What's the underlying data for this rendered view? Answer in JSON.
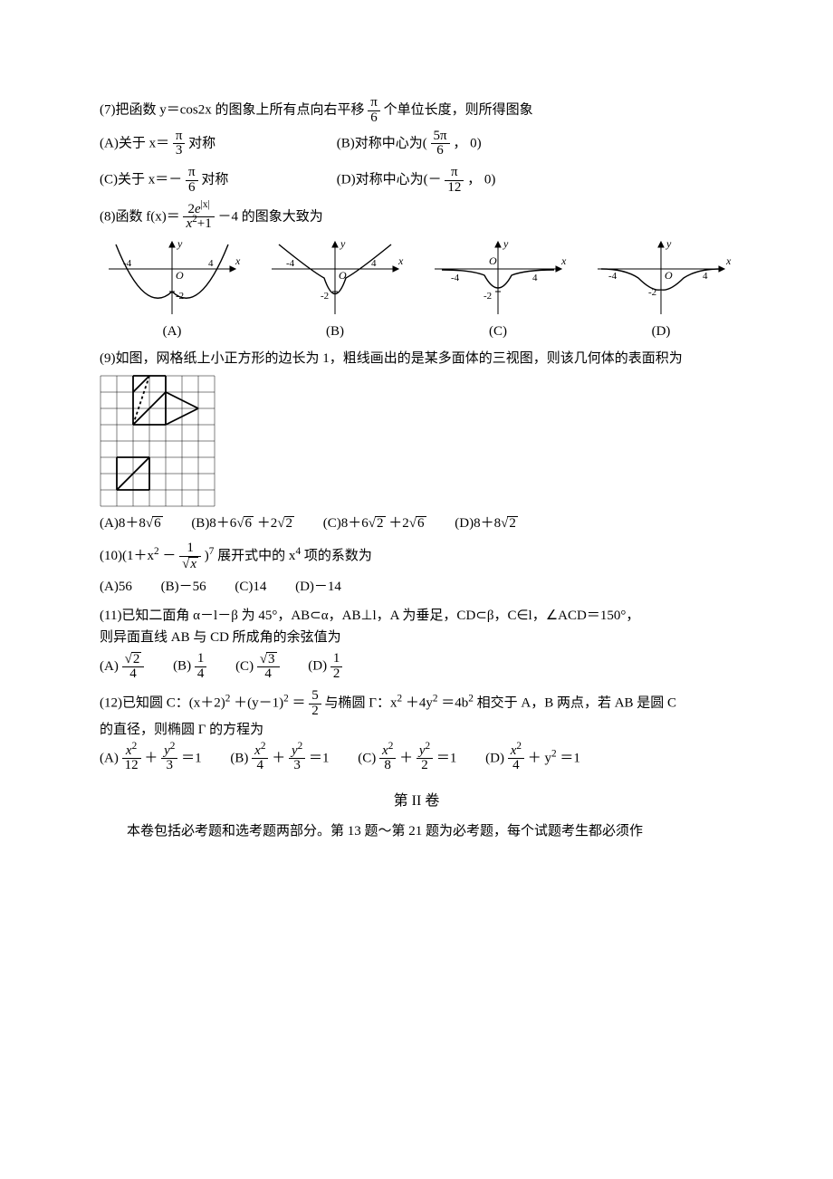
{
  "q7": {
    "stem_a": "(7)把函数 y＝cos2x 的图象上所有点向右平移",
    "stem_b": "个单位长度，则所得图象",
    "shift_num": "π",
    "shift_den": "6",
    "optA_a": "(A)关于 x＝",
    "optA_num": "π",
    "optA_den": "3",
    "optA_b": "对称",
    "optB_a": "(B)对称中心为(",
    "optB_num": "5π",
    "optB_den": "6",
    "optB_b": "， 0)",
    "optC_a": "(C)关于 x＝－",
    "optC_num": "π",
    "optC_den": "6",
    "optC_b": "对称",
    "optD_a": "(D)对称中心为(－",
    "optD_num": "π",
    "optD_den": "12",
    "optD_b": "， 0)"
  },
  "q8": {
    "stem_a": "(8)函数 f(x)＝",
    "num_prefix": "2",
    "num_e_base": "e",
    "num_e_sup": "|x|",
    "den_x": "x",
    "den_sup": "2",
    "den_plus": "+1",
    "stem_b": "－4 的图象大致为",
    "charts": {
      "axis_color": "#000000",
      "curve_color": "#000000",
      "y_label": "y",
      "x_label": "x",
      "origin": "O",
      "x_tick_neg": "-4",
      "x_tick_pos": "4",
      "y_tick": "-2",
      "labels": [
        "(A)",
        "(B)",
        "(C)",
        "(D)"
      ]
    }
  },
  "q9": {
    "stem": "(9)如图，网格纸上小正方形的边长为 1，粗线画出的是某多面体的三视图，则该几何体的表面积为",
    "grid": {
      "cell": 18,
      "cols": 7,
      "rows": 8,
      "grid_color": "#000000",
      "thick_color": "#000000",
      "dash_color": "#000000"
    },
    "optA_a": "(A)8＋8",
    "optA_rad": "6",
    "optB_a": "(B)8＋6",
    "optB_rad1": "6",
    "optB_mid": "＋2",
    "optB_rad2": "2",
    "optC_a": "(C)8＋6",
    "optC_rad1": "2",
    "optC_mid": "＋2",
    "optC_rad2": "6",
    "optD_a": "(D)8＋8",
    "optD_rad": "2"
  },
  "q10": {
    "stem_a": "(10)(1＋x",
    "sup2": "2",
    "stem_b": "－",
    "frac_num": "1",
    "frac_den_x": "x",
    "stem_c": ")",
    "sup7": "7",
    "stem_d": " 展开式中的 x",
    "sup4": "4",
    "stem_e": " 项的系数为",
    "A": "(A)56",
    "B": "(B)－56",
    "C": "(C)14",
    "D": "(D)－14"
  },
  "q11": {
    "line1": "(11)已知二面角 α－l－β 为 45°，AB⊂α，AB⊥l，A 为垂足，CD⊂β，C∈l，∠ACD＝150°，",
    "line2": "则异面直线 AB 与 CD 所成角的余弦值为",
    "A_lbl": "(A)",
    "A_num_rad": "2",
    "A_den": "4",
    "B_lbl": "(B)",
    "B_num": "1",
    "B_den": "4",
    "C_lbl": "(C)",
    "C_num_rad": "3",
    "C_den": "4",
    "D_lbl": "(D)",
    "D_num": "1",
    "D_den": "2"
  },
  "q12": {
    "stem_a": "(12)已知圆 C：(x＋2)",
    "sup2a": "2",
    "stem_b": "＋(y－1)",
    "sup2b": "2",
    "stem_c": "＝",
    "frac_num": "5",
    "frac_den": "2",
    "stem_d": " 与椭圆 Γ：x",
    "sup2c": "2",
    "stem_e": "＋4y",
    "sup2d": "2",
    "stem_f": "＝4b",
    "sup2e": "2",
    "stem_g": " 相交于 A，B 两点，若 AB 是圆 C",
    "line2": "的直径，则椭圆 Γ 的方程为",
    "A_lbl": "(A)",
    "A_xden": "12",
    "A_yden": "3",
    "eq": "＝1",
    "B_lbl": "(B)",
    "B_xden": "4",
    "B_yden": "3",
    "C_lbl": "(C)",
    "C_xden": "8",
    "C_yden": "2",
    "D_lbl": "(D)",
    "D_xden": "4",
    "x2": "x",
    "y2": "y",
    "sup2": "2",
    "plus": "＋",
    "plus_y2": "＋ y",
    "eq1": "＝1"
  },
  "section2": {
    "title": "第 II 卷",
    "para": "本卷包括必考题和选考题两部分。第 13 题～第 21 题为必考题，每个试题考生都必须作"
  }
}
